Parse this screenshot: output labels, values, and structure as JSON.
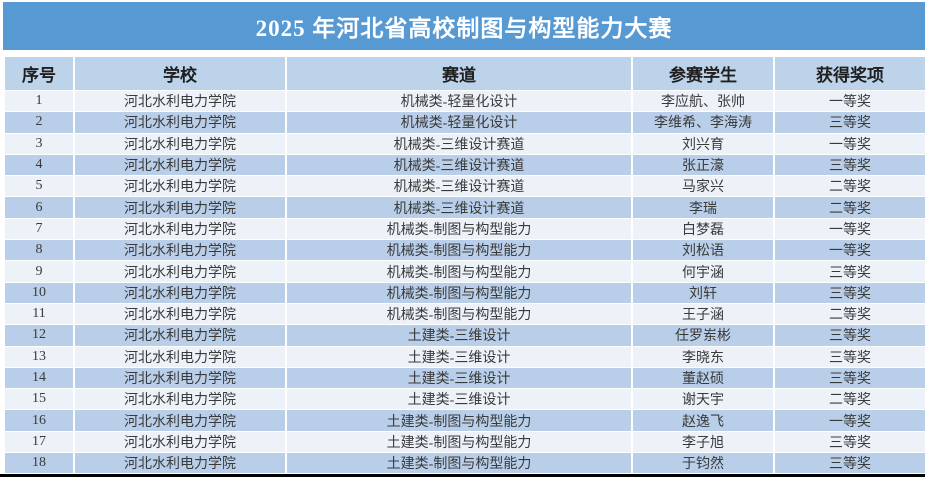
{
  "table": {
    "title": "2025 年河北省高校制图与构型能力大赛",
    "columns": [
      "序号",
      "学校",
      "赛道",
      "参赛学生",
      "获得奖项"
    ],
    "rows": [
      [
        "1",
        "河北水利电力学院",
        "机械类-轻量化设计",
        "李应航、张帅",
        "一等奖"
      ],
      [
        "2",
        "河北水利电力学院",
        "机械类-轻量化设计",
        "李维希、李海涛",
        "三等奖"
      ],
      [
        "3",
        "河北水利电力学院",
        "机械类-三维设计赛道",
        "刘兴育",
        "一等奖"
      ],
      [
        "4",
        "河北水利电力学院",
        "机械类-三维设计赛道",
        "张正濠",
        "三等奖"
      ],
      [
        "5",
        "河北水利电力学院",
        "机械类-三维设计赛道",
        "马家兴",
        "二等奖"
      ],
      [
        "6",
        "河北水利电力学院",
        "机械类-三维设计赛道",
        "李瑞",
        "二等奖"
      ],
      [
        "7",
        "河北水利电力学院",
        "机械类-制图与构型能力",
        "白梦磊",
        "一等奖"
      ],
      [
        "8",
        "河北水利电力学院",
        "机械类-制图与构型能力",
        "刘松语",
        "一等奖"
      ],
      [
        "9",
        "河北水利电力学院",
        "机械类-制图与构型能力",
        "何宇涵",
        "三等奖"
      ],
      [
        "10",
        "河北水利电力学院",
        "机械类-制图与构型能力",
        "刘轩",
        "三等奖"
      ],
      [
        "11",
        "河北水利电力学院",
        "机械类-制图与构型能力",
        "王子涵",
        "二等奖"
      ],
      [
        "12",
        "河北水利电力学院",
        "土建类-三维设计",
        "任罗岽彬",
        "三等奖"
      ],
      [
        "13",
        "河北水利电力学院",
        "土建类-三维设计",
        "李晓东",
        "三等奖"
      ],
      [
        "14",
        "河北水利电力学院",
        "土建类-三维设计",
        "董赵硕",
        "三等奖"
      ],
      [
        "15",
        "河北水利电力学院",
        "土建类-三维设计",
        "谢天宇",
        "二等奖"
      ],
      [
        "16",
        "河北水利电力学院",
        "土建类-制图与构型能力",
        "赵逸飞",
        "一等奖"
      ],
      [
        "17",
        "河北水利电力学院",
        "土建类-制图与构型能力",
        "李子旭",
        "三等奖"
      ],
      [
        "18",
        "河北水利电力学院",
        "土建类-制图与构型能力",
        "于钧然",
        "三等奖"
      ]
    ]
  },
  "colors": {
    "title_bar": "#5799d3",
    "title_text": "#ffffff",
    "header_row": "#bdd3ea",
    "header_text": "#1f1f1f",
    "row_odd": "#edf2f9",
    "row_even": "#b9cfe9",
    "body_text": "#3a3a3a",
    "bottom_border": "#000000"
  }
}
